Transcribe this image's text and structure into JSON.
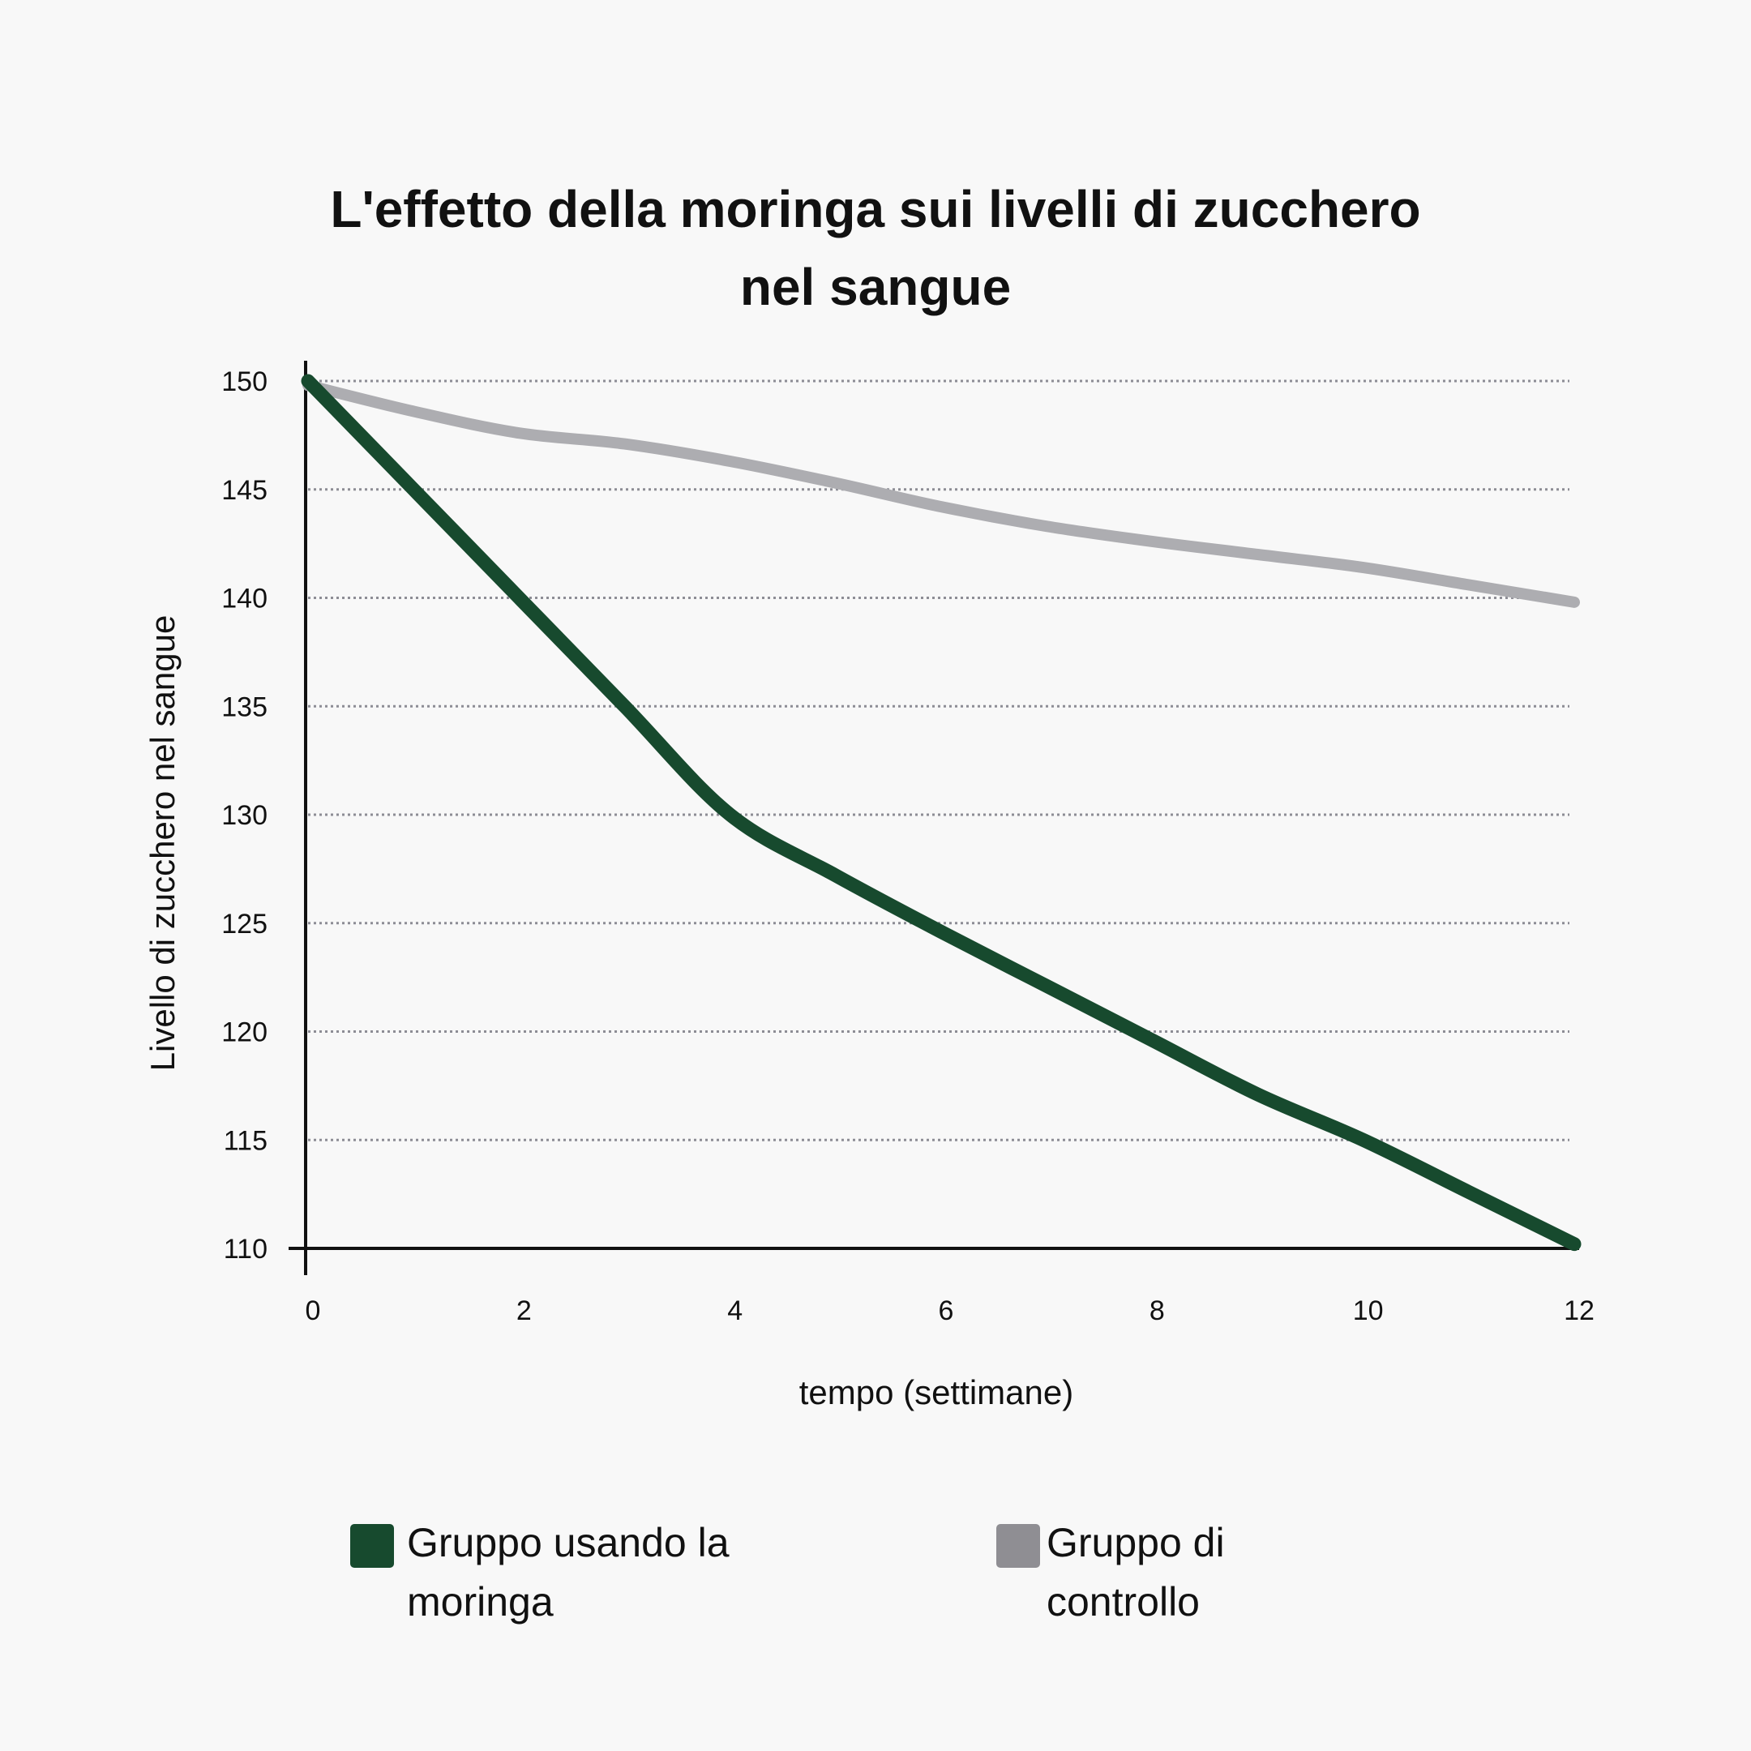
{
  "chart_data": {
    "type": "line",
    "title": "L'effetto della moringa sui livelli di zucchero nel sangue",
    "title_lines": [
      "L'effetto della moringa sui livelli di zucchero",
      "nel sangue"
    ],
    "xlabel": "tempo (settimane)",
    "ylabel": "Livello di zucchero nel sangue",
    "xlim": [
      0,
      12
    ],
    "ylim": [
      110,
      150
    ],
    "xticks": [
      "0",
      "2",
      "4",
      "6",
      "8",
      "10",
      "12"
    ],
    "yticks": [
      "150",
      "145",
      "140",
      "135",
      "130",
      "125",
      "120",
      "115",
      "110"
    ],
    "grid": "horizontal dotted",
    "legend_position": "bottom",
    "series": [
      {
        "name": "Gruppo usando la moringa",
        "legend_lines": [
          "Gruppo usando la",
          "moringa"
        ],
        "color": "#174a2e",
        "x": [
          0,
          1,
          2,
          3,
          4,
          5,
          6,
          7,
          8,
          9,
          10,
          11,
          12
        ],
        "values": [
          150,
          145,
          140,
          135,
          130,
          127.2,
          124.6,
          122.1,
          119.6,
          117.1,
          115.0,
          112.6,
          110.2
        ]
      },
      {
        "name": "Gruppo di controllo",
        "legend_lines": [
          "Gruppo di",
          "controllo"
        ],
        "color": "#adadb1",
        "legend_color": "#8f8e93",
        "x": [
          0,
          1,
          2,
          3,
          4,
          5,
          6,
          7,
          8,
          9,
          10,
          11,
          12
        ],
        "values": [
          149.8,
          148.6,
          147.6,
          147.1,
          146.3,
          145.3,
          144.2,
          143.3,
          142.6,
          142.0,
          141.4,
          140.6,
          139.8
        ]
      }
    ]
  }
}
